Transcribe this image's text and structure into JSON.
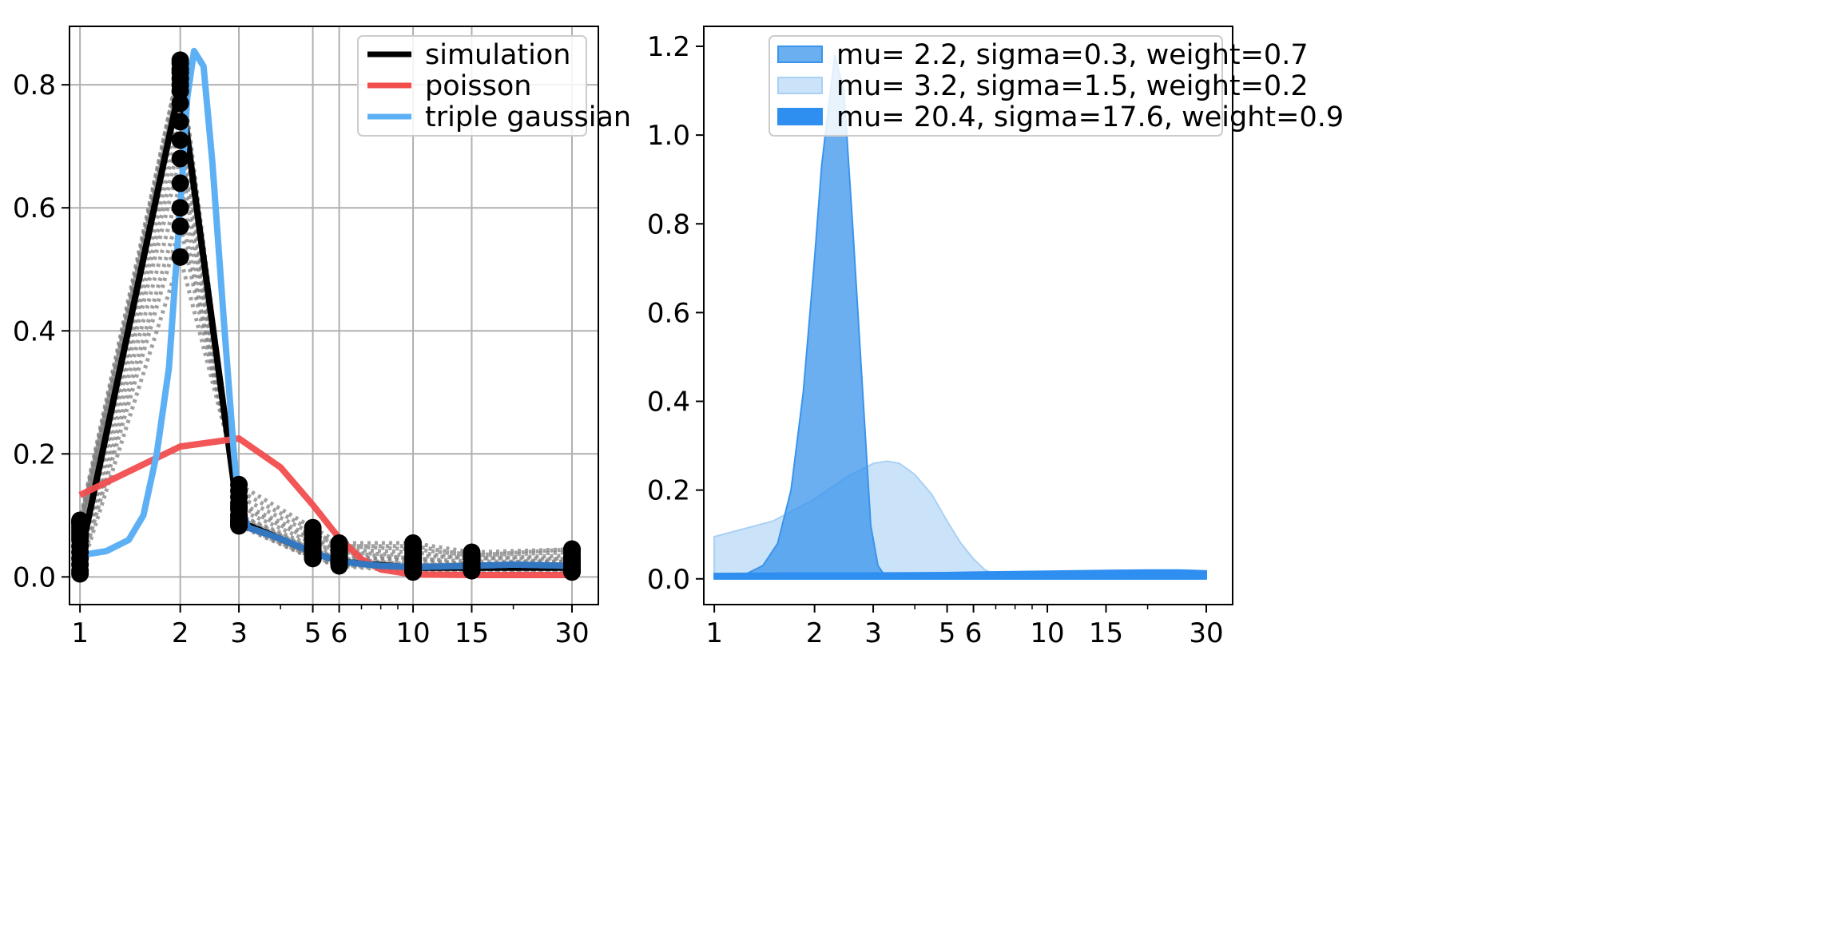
{
  "chart_data": [
    {
      "type": "line",
      "xscale": "log",
      "xlim": [
        0.93,
        36
      ],
      "ylim": [
        -0.045,
        0.895
      ],
      "grid": true,
      "legend_position": "top-right",
      "x_ticks": [
        1,
        2,
        3,
        5,
        6,
        10,
        15,
        30
      ],
      "y_ticks": [
        0.0,
        0.2,
        0.4,
        0.6,
        0.8
      ],
      "x_tick_labels": [
        "1",
        "2",
        "3",
        "5",
        "6",
        "10",
        "15",
        "30"
      ],
      "y_tick_labels": [
        "0.0",
        "0.2",
        "0.4",
        "0.6",
        "0.8"
      ],
      "series": [
        {
          "name": "simulation",
          "color": "#000000",
          "style": "solid",
          "x": [
            1,
            2,
            3,
            5,
            6,
            10,
            15,
            30
          ],
          "values": [
            0.03,
            0.8,
            0.09,
            0.04,
            0.025,
            0.015,
            0.015,
            0.015
          ]
        },
        {
          "name": "poisson",
          "color": "#f24d4d",
          "style": "solid",
          "x": [
            1,
            2,
            3,
            4,
            5,
            6,
            7,
            8,
            10,
            15,
            30
          ],
          "values": [
            0.133,
            0.212,
            0.225,
            0.178,
            0.117,
            0.063,
            0.029,
            0.012,
            0.004,
            0.003,
            0.003
          ]
        },
        {
          "name": "triple gaussian",
          "color": "#5eb0f5",
          "style": "solid",
          "x": [
            1,
            1.2,
            1.4,
            1.55,
            1.7,
            1.85,
            2.0,
            2.1,
            2.2,
            2.35,
            2.5,
            2.7,
            2.9,
            3.0,
            3.2,
            3.5,
            4,
            5,
            6,
            8,
            10,
            15,
            20,
            30
          ],
          "values": [
            0.035,
            0.042,
            0.06,
            0.1,
            0.2,
            0.34,
            0.6,
            0.78,
            0.855,
            0.83,
            0.67,
            0.42,
            0.2,
            0.12,
            0.08,
            0.073,
            0.062,
            0.04,
            0.025,
            0.018,
            0.016,
            0.018,
            0.02,
            0.018
          ]
        }
      ],
      "simulation_runs": {
        "color": "#808080",
        "style": "dotted",
        "x": [
          1,
          2,
          3,
          5,
          6,
          10,
          15,
          30
        ],
        "runs": [
          [
            0.005,
            0.52,
            0.15,
            0.08,
            0.055,
            0.055,
            0.04,
            0.045
          ],
          [
            0.01,
            0.57,
            0.14,
            0.075,
            0.05,
            0.05,
            0.035,
            0.045
          ],
          [
            0.02,
            0.6,
            0.13,
            0.07,
            0.05,
            0.045,
            0.035,
            0.04
          ],
          [
            0.03,
            0.64,
            0.12,
            0.065,
            0.045,
            0.04,
            0.03,
            0.035
          ],
          [
            0.04,
            0.68,
            0.115,
            0.06,
            0.04,
            0.035,
            0.03,
            0.03
          ],
          [
            0.05,
            0.71,
            0.11,
            0.055,
            0.04,
            0.03,
            0.025,
            0.025
          ],
          [
            0.06,
            0.74,
            0.1,
            0.05,
            0.035,
            0.025,
            0.02,
            0.02
          ],
          [
            0.07,
            0.77,
            0.095,
            0.045,
            0.03,
            0.02,
            0.02,
            0.02
          ],
          [
            0.08,
            0.79,
            0.09,
            0.04,
            0.025,
            0.015,
            0.015,
            0.015
          ],
          [
            0.085,
            0.81,
            0.088,
            0.035,
            0.022,
            0.012,
            0.015,
            0.012
          ],
          [
            0.09,
            0.825,
            0.085,
            0.032,
            0.02,
            0.01,
            0.012,
            0.01
          ],
          [
            0.092,
            0.835,
            0.083,
            0.03,
            0.018,
            0.008,
            0.01,
            0.008
          ],
          [
            0.088,
            0.8,
            0.1,
            0.045,
            0.03,
            0.03,
            0.02,
            0.03
          ],
          [
            0.075,
            0.82,
            0.09,
            0.035,
            0.025,
            0.02,
            0.018,
            0.025
          ],
          [
            0.065,
            0.84,
            0.085,
            0.03,
            0.02,
            0.015,
            0.015,
            0.02
          ]
        ]
      }
    },
    {
      "type": "area",
      "xscale": "log",
      "xlim": [
        0.93,
        36
      ],
      "ylim": [
        -0.058,
        1.245
      ],
      "grid": false,
      "legend_position": "top-right",
      "x_ticks": [
        1,
        2,
        3,
        5,
        6,
        10,
        15,
        30
      ],
      "y_ticks": [
        0.0,
        0.2,
        0.4,
        0.6,
        0.8,
        1.0,
        1.2
      ],
      "x_tick_labels": [
        "1",
        "2",
        "3",
        "5",
        "6",
        "10",
        "15",
        "30"
      ],
      "y_tick_labels": [
        "0.0",
        "0.2",
        "0.4",
        "0.6",
        "0.8",
        "1.0",
        "1.2"
      ],
      "series": [
        {
          "name": "mu= 2.2, sigma=0.3, weight=0.7",
          "color": "#3a94ec",
          "opacity": 0.75,
          "x": [
            1,
            1.2,
            1.4,
            1.55,
            1.7,
            1.85,
            2.0,
            2.1,
            2.2,
            2.3,
            2.45,
            2.6,
            2.8,
            2.95,
            3.1,
            3.3,
            30
          ],
          "values": [
            0.0,
            0.005,
            0.03,
            0.08,
            0.2,
            0.42,
            0.72,
            0.93,
            1.06,
            1.18,
            1.1,
            0.8,
            0.4,
            0.12,
            0.03,
            0.0,
            0.0
          ]
        },
        {
          "name": "mu= 3.2, sigma=1.5, weight=0.2",
          "color": "#a9d0f5",
          "opacity": 0.6,
          "x": [
            1,
            1.5,
            2.0,
            2.5,
            3.0,
            3.3,
            3.6,
            4.0,
            4.5,
            5.0,
            5.5,
            6.0,
            6.5,
            7.0,
            8.0,
            30
          ],
          "values": [
            0.095,
            0.13,
            0.18,
            0.23,
            0.26,
            0.265,
            0.26,
            0.235,
            0.19,
            0.13,
            0.08,
            0.045,
            0.02,
            0.01,
            0.0,
            0.0
          ]
        },
        {
          "name": "mu= 20.4, sigma=17.6, weight=0.9",
          "color": "#2f8ff0",
          "opacity": 1.0,
          "x": [
            1,
            2,
            3,
            5,
            6,
            10,
            15,
            20,
            25,
            30
          ],
          "values": [
            0.012,
            0.013,
            0.013,
            0.014,
            0.015,
            0.017,
            0.019,
            0.02,
            0.02,
            0.018
          ]
        }
      ]
    }
  ]
}
